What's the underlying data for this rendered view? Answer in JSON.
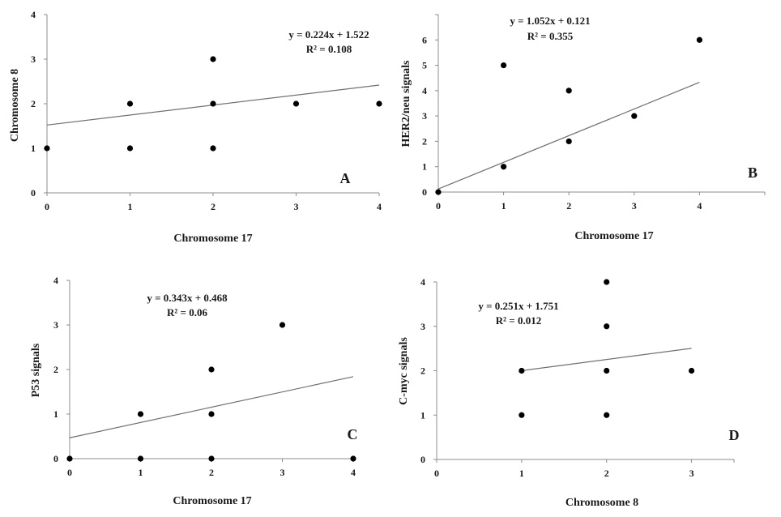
{
  "chart_data": [
    {
      "type": "scatter",
      "panel": "A",
      "xlabel": "Chromosome 17",
      "ylabel": "Chromosome 8",
      "xlim": [
        0,
        4
      ],
      "ylim": [
        0,
        4
      ],
      "xticks": [
        "0",
        "1",
        "2",
        "3",
        "4"
      ],
      "yticks": [
        "0",
        "1",
        "2",
        "3",
        "4"
      ],
      "points": [
        [
          0,
          1
        ],
        [
          1,
          1
        ],
        [
          1,
          2
        ],
        [
          2,
          1
        ],
        [
          2,
          2
        ],
        [
          2,
          3
        ],
        [
          3,
          2
        ],
        [
          4,
          2
        ]
      ],
      "trendline": {
        "slope": 0.224,
        "intercept": 1.522
      },
      "equation": "y = 0.224x + 1.522",
      "r2": "R² = 0.108"
    },
    {
      "type": "scatter",
      "panel": "B",
      "xlabel": "Chromosome 17",
      "ylabel": "HER2/neu signals",
      "xlim": [
        0,
        5
      ],
      "ylim": [
        0,
        7
      ],
      "xticks": [
        "0",
        "1",
        "2",
        "3",
        "4"
      ],
      "yticks": [
        "0",
        "1",
        "2",
        "3",
        "4",
        "5",
        "6"
      ],
      "points": [
        [
          0,
          0
        ],
        [
          1,
          1
        ],
        [
          1,
          5
        ],
        [
          2,
          2
        ],
        [
          2,
          4
        ],
        [
          3,
          3
        ],
        [
          4,
          6
        ]
      ],
      "trendline": {
        "slope": 1.052,
        "intercept": 0.121
      },
      "equation": "y = 1.052x + 0.121",
      "r2": "R² = 0.355"
    },
    {
      "type": "scatter",
      "panel": "C",
      "xlabel": "Chromosome 17",
      "ylabel": "P53 signals",
      "xlim": [
        0,
        4
      ],
      "ylim": [
        0,
        4
      ],
      "xticks": [
        "0",
        "1",
        "2",
        "3",
        "4"
      ],
      "yticks": [
        "0",
        "1",
        "2",
        "3",
        "4"
      ],
      "points": [
        [
          0,
          0
        ],
        [
          1,
          0
        ],
        [
          1,
          1
        ],
        [
          2,
          0
        ],
        [
          2,
          1
        ],
        [
          2,
          2
        ],
        [
          3,
          3
        ],
        [
          4,
          0
        ]
      ],
      "trendline": {
        "slope": 0.343,
        "intercept": 0.468
      },
      "equation": "y = 0.343x + 0.468",
      "r2": "R² = 0.06"
    },
    {
      "type": "scatter",
      "panel": "D",
      "xlabel": "Chromosome 8",
      "ylabel": "C-myc signals",
      "xlim": [
        0,
        3.5
      ],
      "ylim": [
        0,
        4
      ],
      "xticks": [
        "0",
        "1",
        "2",
        "3"
      ],
      "yticks": [
        "0",
        "1",
        "2",
        "3",
        "4"
      ],
      "points": [
        [
          1,
          1
        ],
        [
          1,
          2
        ],
        [
          2,
          1
        ],
        [
          2,
          2
        ],
        [
          2,
          3
        ],
        [
          2,
          4
        ],
        [
          3,
          2
        ]
      ],
      "trendline": {
        "slope": 0.251,
        "intercept": 1.751
      },
      "equation": "y = 0.251x + 1.751",
      "r2": "R² = 0.012"
    }
  ]
}
